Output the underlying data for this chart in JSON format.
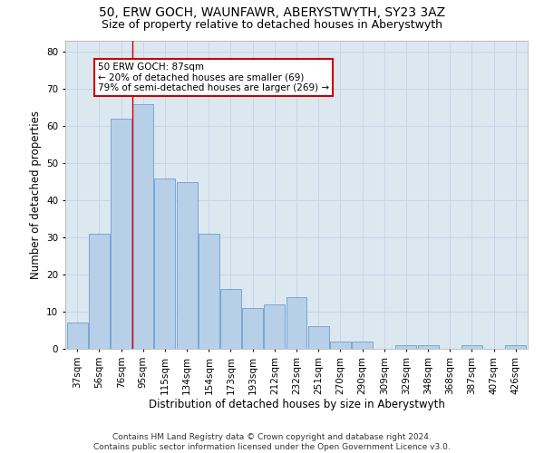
{
  "title_line1": "50, ERW GOCH, WAUNFAWR, ABERYSTWYTH, SY23 3AZ",
  "title_line2": "Size of property relative to detached houses in Aberystwyth",
  "xlabel": "Distribution of detached houses by size in Aberystwyth",
  "ylabel": "Number of detached properties",
  "categories": [
    "37sqm",
    "56sqm",
    "76sqm",
    "95sqm",
    "115sqm",
    "134sqm",
    "154sqm",
    "173sqm",
    "193sqm",
    "212sqm",
    "232sqm",
    "251sqm",
    "270sqm",
    "290sqm",
    "309sqm",
    "329sqm",
    "348sqm",
    "368sqm",
    "387sqm",
    "407sqm",
    "426sqm"
  ],
  "values": [
    7,
    31,
    62,
    66,
    46,
    45,
    31,
    16,
    11,
    12,
    14,
    6,
    2,
    2,
    0,
    1,
    1,
    0,
    1,
    0,
    1
  ],
  "bar_color": "#b8cfe8",
  "bar_edge_color": "#6a9fd4",
  "vline_x_index": 2.5,
  "annotation_text": "50 ERW GOCH: 87sqm\n← 20% of detached houses are smaller (69)\n79% of semi-detached houses are larger (269) →",
  "annotation_box_color": "#ffffff",
  "annotation_box_edge": "#cc0000",
  "vline_color": "#cc0000",
  "ylim": [
    0,
    83
  ],
  "yticks": [
    0,
    10,
    20,
    30,
    40,
    50,
    60,
    70,
    80
  ],
  "grid_color": "#c8d4e8",
  "bg_color": "#dce8f0",
  "footer": "Contains HM Land Registry data © Crown copyright and database right 2024.\nContains public sector information licensed under the Open Government Licence v3.0.",
  "title_fontsize": 10,
  "subtitle_fontsize": 9,
  "axis_label_fontsize": 8.5,
  "tick_fontsize": 7.5,
  "footer_fontsize": 6.5,
  "ann_fontsize": 7.5
}
